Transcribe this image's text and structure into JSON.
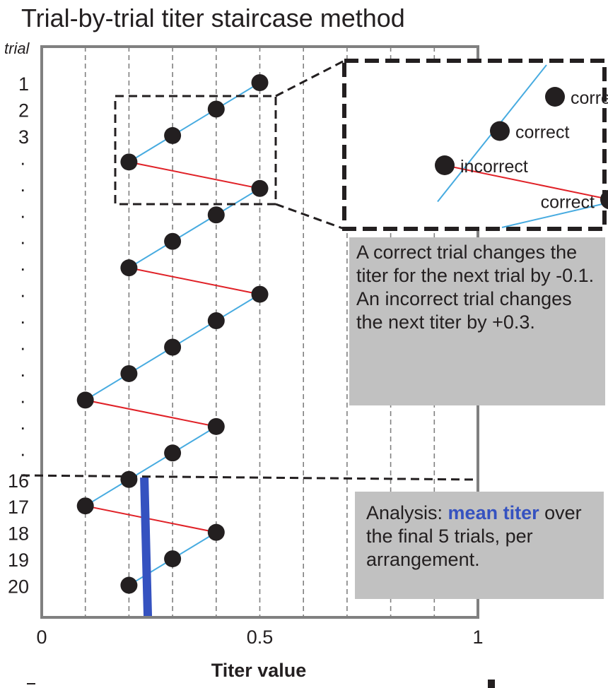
{
  "chart_data": {
    "type": "scatter",
    "title": "Trial-by-trial titer staircase method",
    "xlabel": "Titer value",
    "ylabel": "trial",
    "xlim": [
      0,
      1
    ],
    "x_ticks": [
      0,
      0.5,
      1
    ],
    "x_tick_labels": [
      "0",
      "0.5",
      "1"
    ],
    "grid_x": [
      0.1,
      0.2,
      0.3,
      0.4,
      0.5,
      0.6,
      0.7,
      0.8,
      0.9
    ],
    "y_tick_labels": [
      "1",
      "2",
      "3",
      ".",
      ".",
      ".",
      ".",
      ".",
      ".",
      ".",
      ".",
      ".",
      ".",
      ".",
      ".",
      "16",
      "17",
      "18",
      "19",
      "20"
    ],
    "trials": [
      1,
      2,
      3,
      4,
      5,
      6,
      7,
      8,
      9,
      10,
      11,
      12,
      13,
      14,
      15,
      16,
      17,
      18,
      19,
      20
    ],
    "titers": [
      0.5,
      0.4,
      0.3,
      0.2,
      0.5,
      0.4,
      0.3,
      0.2,
      0.5,
      0.4,
      0.3,
      0.2,
      0.1,
      0.4,
      0.3,
      0.2,
      0.1,
      0.4,
      0.3,
      0.2
    ],
    "outcomes": [
      "correct",
      "correct",
      "correct",
      "incorrect",
      "correct",
      "correct",
      "correct",
      "incorrect",
      "correct",
      "correct",
      "correct",
      "correct",
      "incorrect",
      "correct",
      "correct",
      "correct",
      "incorrect",
      "correct",
      "correct",
      "correct"
    ],
    "step_correct": -0.1,
    "step_incorrect": 0.3,
    "analysis_start_trial": 16,
    "mean_titer_final_5": 0.24,
    "colors": {
      "correct_line": "#47abe0",
      "incorrect_line": "#e02127",
      "mean": "#3552c0",
      "point": "#231f20",
      "grid": "#808080"
    }
  },
  "inset": {
    "labels": [
      "correct",
      "correct",
      "incorrect",
      "correct"
    ]
  },
  "info_text": "A correct trial changes the titer for the next trial by -0.1. An incorrect trial changes the next titer by +0.3.",
  "analysis": {
    "prefix": "Analysis: ",
    "highlight": "mean titer",
    "suffix": " over the final 5 trials, per arrangement."
  }
}
